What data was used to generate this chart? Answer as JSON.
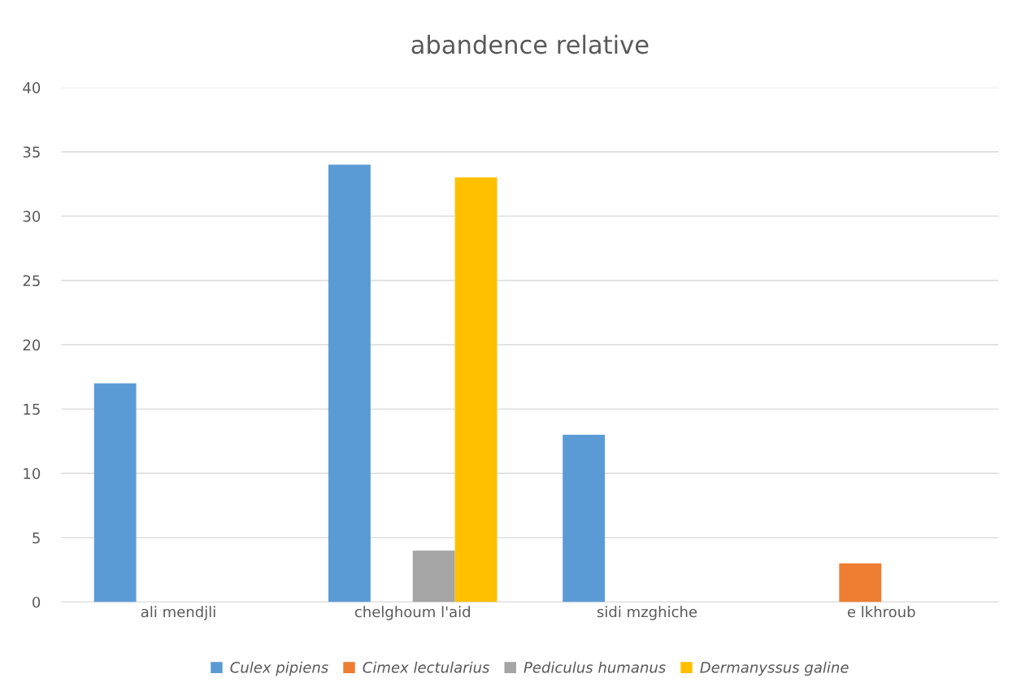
{
  "chart_data": {
    "type": "bar",
    "title": "abandence relative",
    "categories": [
      "ali mendjli",
      "chelghoum l'aid",
      "sidi mzghiche",
      "e lkhroub"
    ],
    "series": [
      {
        "name": "Culex pipiens",
        "color": "#5b9bd5",
        "values": [
          17,
          34,
          13,
          0
        ]
      },
      {
        "name": "Cimex lectularius",
        "color": "#ed7d31",
        "values": [
          0,
          0,
          0,
          3
        ]
      },
      {
        "name": "Pediculus humanus",
        "color": "#a5a5a5",
        "values": [
          0,
          4,
          0,
          0
        ]
      },
      {
        "name": "Dermanyssus galine",
        "color": "#ffc000",
        "values": [
          0,
          33,
          0,
          0
        ]
      }
    ],
    "ylim": [
      0,
      40
    ],
    "yticks": [
      0,
      5,
      10,
      15,
      20,
      25,
      30,
      35,
      40
    ],
    "grid": "y",
    "legend": "bottom"
  }
}
